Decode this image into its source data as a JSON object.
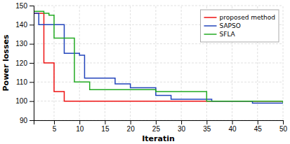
{
  "chart_data": {
    "type": "step",
    "xlabel": "Iteratin",
    "ylabel": "Power losses",
    "series": [
      {
        "name": "proposed method",
        "color": "#ee1111",
        "x": [
          1,
          3,
          4,
          5,
          6,
          7,
          8,
          9,
          10,
          50
        ],
        "values": [
          146,
          120,
          120,
          105,
          105,
          100,
          100,
          100,
          100,
          100
        ]
      },
      {
        "name": "SAPSO",
        "color": "#2244bb",
        "x": [
          1,
          2,
          3,
          4,
          5,
          6,
          7,
          8,
          9,
          10,
          11,
          14,
          15,
          17,
          18,
          20,
          21,
          25,
          26,
          28,
          29,
          35,
          36,
          43,
          44,
          50
        ],
        "values": [
          146,
          140,
          140,
          140,
          140,
          140,
          125,
          125,
          125,
          124,
          112,
          112,
          112,
          109,
          109,
          107,
          107,
          103,
          103,
          101,
          101,
          101,
          100,
          100,
          99,
          99
        ]
      },
      {
        "name": "SFLA",
        "color": "#22aa22",
        "x": [
          1,
          2,
          3,
          4,
          5,
          7,
          8,
          9,
          10,
          12,
          13,
          24,
          25,
          34,
          35,
          50
        ],
        "values": [
          147,
          147,
          146,
          145,
          133,
          133,
          133,
          110,
          110,
          106,
          106,
          106,
          105,
          105,
          100,
          99
        ]
      }
    ],
    "xlim": [
      1,
      50
    ],
    "ylim": [
      90,
      150
    ],
    "xticks": [
      5,
      10,
      15,
      20,
      25,
      30,
      35,
      40,
      45,
      50
    ],
    "yticks": [
      90,
      100,
      110,
      120,
      130,
      140,
      150
    ],
    "grid": true,
    "legend": "upper right"
  }
}
